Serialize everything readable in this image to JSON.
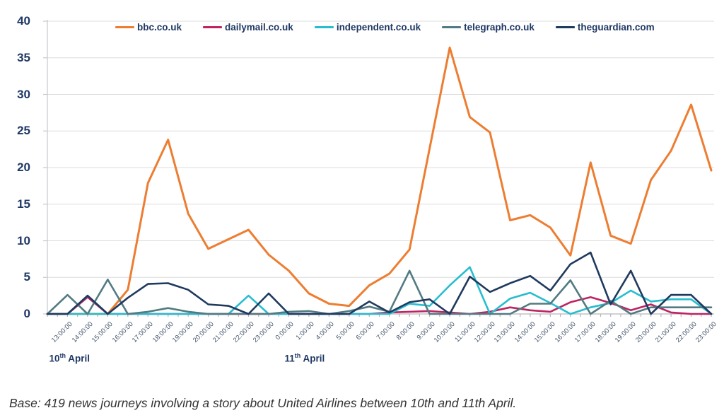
{
  "legend": {
    "items": [
      {
        "label": "bbc.co.uk",
        "color": "#ED7D31"
      },
      {
        "label": "dailymail.co.uk",
        "color": "#BE2362"
      },
      {
        "label": "independent.co.uk",
        "color": "#27BDCF"
      },
      {
        "label": "telegraph.co.uk",
        "color": "#527A82"
      },
      {
        "label": "theguardian.com",
        "color": "#1F3A5F"
      }
    ]
  },
  "chart_data": {
    "type": "line",
    "title": "",
    "xlabel": "",
    "ylabel": "",
    "ylim": [
      0,
      40
    ],
    "ytick_step": 5,
    "grid": true,
    "legend_position": "top",
    "leading_zero_point": true,
    "categories": [
      "13:00:00",
      "14:00:00",
      "15:00:00",
      "16:00:00",
      "17:00:00",
      "18:00:00",
      "19:00:00",
      "20:00:00",
      "21:00:00",
      "22:00:00",
      "23:00:00",
      "0:00:00",
      "1:00:00",
      "4:00:00",
      "5:00:00",
      "6:00:00",
      "7:00:00",
      "8:00:00",
      "9:00:00",
      "10:00:00",
      "11:00:00",
      "12:00:00",
      "13:00:00",
      "14:00:00",
      "15:00:00",
      "16:00:00",
      "17:00:00",
      "18:00:00",
      "19:00:00",
      "20:00:00",
      "21:00:00",
      "22:00:00",
      "23:00:00"
    ],
    "series": [
      {
        "name": "bbc.co.uk",
        "color": "#ED7D31",
        "width": 3,
        "values": [
          0,
          0,
          0,
          3.3,
          17.9,
          23.8,
          13.7,
          8.9,
          10.2,
          11.5,
          8.1,
          5.9,
          2.8,
          1.4,
          1.1,
          3.9,
          5.5,
          8.8,
          22.6,
          36.4,
          26.9,
          24.8,
          12.8,
          13.5,
          11.8,
          8,
          20.7,
          10.7,
          9.6,
          18.3,
          22.3,
          28.6,
          19.6
        ]
      },
      {
        "name": "dailymail.co.uk",
        "color": "#BE2362",
        "width": 2.6,
        "values": [
          0,
          2.3,
          0,
          0,
          0,
          0,
          0,
          0,
          0,
          0,
          0,
          0,
          0,
          0,
          0,
          0,
          0.2,
          0.3,
          0.4,
          0.2,
          0,
          0.3,
          0.9,
          0.5,
          0.3,
          1.6,
          2.3,
          1.5,
          0.5,
          1.3,
          0.2,
          0,
          0
        ]
      },
      {
        "name": "independent.co.uk",
        "color": "#27BDCF",
        "width": 2.6,
        "values": [
          0,
          0,
          0,
          0,
          0,
          0,
          0,
          0,
          0,
          2.5,
          0,
          0,
          0,
          0,
          0,
          0,
          0,
          1.4,
          1.1,
          3.9,
          6.4,
          0,
          2.1,
          2.9,
          1.5,
          0,
          0.9,
          1.5,
          3.2,
          1.7,
          2,
          2,
          0
        ]
      },
      {
        "name": "telegraph.co.uk",
        "color": "#527A82",
        "width": 2.6,
        "values": [
          2.6,
          0,
          4.7,
          0,
          0.3,
          0.8,
          0.3,
          0,
          0,
          0,
          0,
          0.3,
          0.4,
          0,
          0.4,
          1,
          0.3,
          5.9,
          0,
          0,
          0,
          0,
          0,
          1.4,
          1.4,
          4.6,
          0,
          1.8,
          0,
          0.9,
          0.9,
          0.9,
          0.9
        ]
      },
      {
        "name": "theguardian.com",
        "color": "#1F3A5F",
        "width": 2.6,
        "values": [
          0,
          2.5,
          0,
          2.2,
          4.1,
          4.2,
          3.3,
          1.3,
          1.1,
          0,
          2.8,
          0,
          0,
          0,
          0,
          1.7,
          0.2,
          1.6,
          2,
          0,
          5.1,
          3,
          4.2,
          5.2,
          3.2,
          6.8,
          8.4,
          1.3,
          5.9,
          0,
          2.6,
          2.6,
          0
        ]
      }
    ],
    "day_markers": [
      {
        "num": "10",
        "sup": "th",
        "rest": " April",
        "category_index": 0
      },
      {
        "num": "11",
        "sup": "th",
        "rest": " April",
        "category_index": 11
      }
    ],
    "ytick_labels": [
      "0",
      "5",
      "10",
      "15",
      "20",
      "25",
      "30",
      "35",
      "40"
    ]
  },
  "footer": {
    "text": "Base: 419 news journeys involving a story about United Airlines between 10th and 11th April."
  }
}
